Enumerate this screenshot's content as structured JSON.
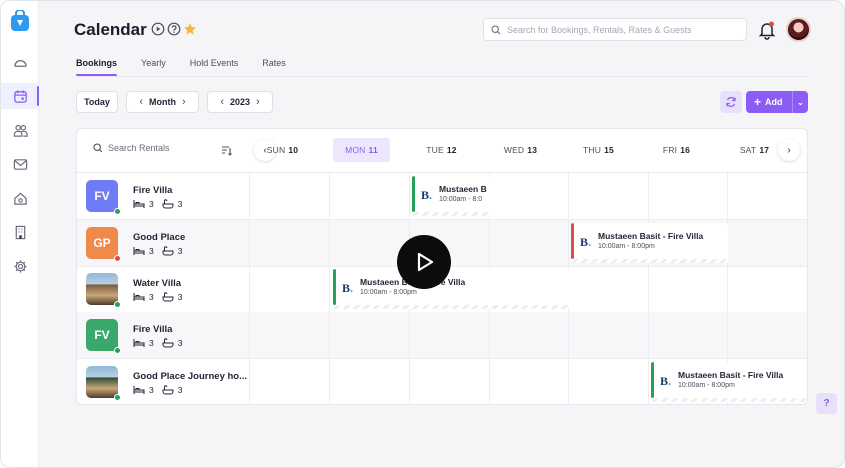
{
  "header": {
    "title": "Calendar",
    "search_placeholder": "Search for Bookings, Rentals, Rates & Guests"
  },
  "tabs": [
    {
      "label": "Bookings",
      "active": true
    },
    {
      "label": "Yearly",
      "active": false
    },
    {
      "label": "Hold Events",
      "active": false
    },
    {
      "label": "Rates",
      "active": false
    }
  ],
  "controls": {
    "today_label": "Today",
    "view_label": "Month",
    "year_label": "2023",
    "add_label": "Add"
  },
  "calendar": {
    "search_rentals_placeholder": "Search Rentals",
    "days": [
      {
        "dow": "SUN",
        "num": "10",
        "today": false
      },
      {
        "dow": "MON",
        "num": "11",
        "today": true
      },
      {
        "dow": "TUE",
        "num": "12",
        "today": false
      },
      {
        "dow": "WED",
        "num": "13",
        "today": false
      },
      {
        "dow": "THU",
        "num": "15",
        "today": false
      },
      {
        "dow": "FRI",
        "num": "16",
        "today": false
      },
      {
        "dow": "SAT",
        "num": "17",
        "today": false
      }
    ],
    "rentals": [
      {
        "initials": "FV",
        "name": "Fire Villa",
        "beds": "3",
        "baths": "3",
        "color": "#6f7cf6",
        "status": "#22a35a",
        "image": false
      },
      {
        "initials": "GP",
        "name": "Good Place",
        "beds": "3",
        "baths": "3",
        "color": "#f08a4b",
        "status": "#e24b4b",
        "image": false
      },
      {
        "initials": "",
        "name": "Water Villa",
        "beds": "3",
        "baths": "3",
        "color": "#7a5a3a",
        "status": "#22a35a",
        "image": true
      },
      {
        "initials": "FV",
        "name": "Fire Villa",
        "beds": "3",
        "baths": "3",
        "color": "#3aa86b",
        "status": "#22a35a",
        "image": false
      },
      {
        "initials": "",
        "name": "Good Place Journey ho...",
        "beds": "3",
        "baths": "3",
        "color": "#2e4a3a",
        "status": "#22a35a",
        "image": true
      }
    ],
    "bookings": [
      {
        "source": "B",
        "title": "Mustaeen B",
        "time": "10:00am - 8:0",
        "color": "#22a35a"
      },
      {
        "source": "B",
        "title": "Mustaeen Basit - Fire Villa",
        "time": "10:00am - 8:00pm",
        "color": "#e24b4b"
      },
      {
        "source": "B",
        "title": "Mustaeen Basit - Fire Villa",
        "time": "10:00am - 8:00pm",
        "color": "#22a35a"
      },
      {
        "source": "B",
        "title": "Mustaeen Basit - Fire Villa",
        "time": "10:00am - 8:00pm",
        "color": "#22a35a"
      }
    ]
  },
  "help_label": "?"
}
